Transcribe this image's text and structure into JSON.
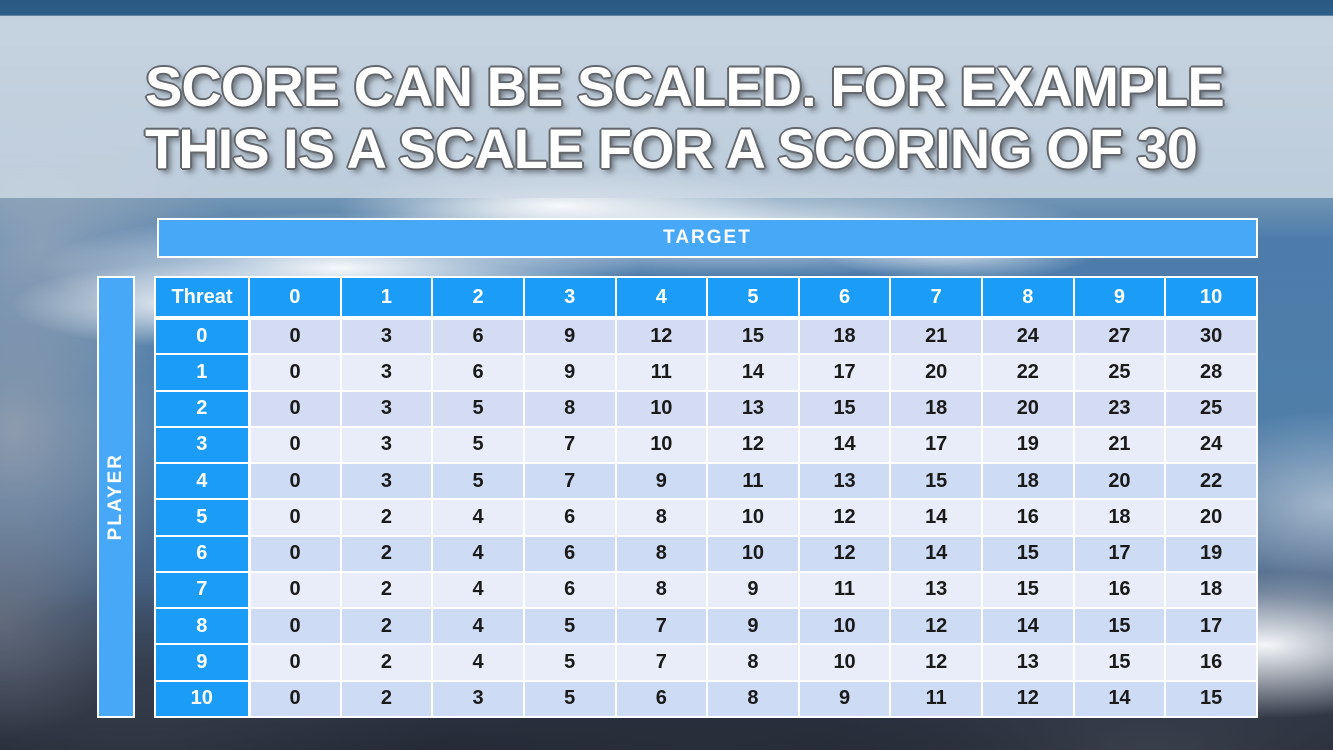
{
  "slide": {
    "title_line1": "SCORE CAN BE SCALED. FOR EXAMPLE",
    "title_line2": "THIS IS A SCALE FOR A SCORING OF 30"
  },
  "matrix": {
    "target_label": "TARGET",
    "player_label": "PLAYER",
    "corner_label": "Threat",
    "column_headers": [
      "0",
      "1",
      "2",
      "3",
      "4",
      "5",
      "6",
      "7",
      "8",
      "9",
      "10"
    ],
    "row_headers": [
      "0",
      "1",
      "2",
      "3",
      "4",
      "5",
      "6",
      "7",
      "8",
      "9",
      "10"
    ],
    "rows": [
      [
        0,
        3,
        6,
        9,
        12,
        15,
        18,
        21,
        24,
        27,
        30
      ],
      [
        0,
        3,
        6,
        9,
        11,
        14,
        17,
        20,
        22,
        25,
        28
      ],
      [
        0,
        3,
        5,
        8,
        10,
        13,
        15,
        18,
        20,
        23,
        25
      ],
      [
        0,
        3,
        5,
        7,
        10,
        12,
        14,
        17,
        19,
        21,
        24
      ],
      [
        0,
        3,
        5,
        7,
        9,
        11,
        13,
        15,
        18,
        20,
        22
      ],
      [
        0,
        2,
        4,
        6,
        8,
        10,
        12,
        14,
        16,
        18,
        20
      ],
      [
        0,
        2,
        4,
        6,
        8,
        10,
        12,
        14,
        15,
        17,
        19
      ],
      [
        0,
        2,
        4,
        6,
        8,
        9,
        11,
        13,
        15,
        16,
        18
      ],
      [
        0,
        2,
        4,
        5,
        7,
        9,
        10,
        12,
        14,
        15,
        17
      ],
      [
        0,
        2,
        4,
        5,
        7,
        8,
        10,
        12,
        13,
        15,
        16
      ],
      [
        0,
        2,
        3,
        5,
        6,
        8,
        9,
        11,
        12,
        14,
        15
      ]
    ]
  },
  "chart_data": {
    "type": "table",
    "title": "Score scale for a scoring of 30",
    "x_axis_label": "TARGET",
    "y_axis_label": "PLAYER",
    "corner_label": "Threat",
    "columns": [
      "0",
      "1",
      "2",
      "3",
      "4",
      "5",
      "6",
      "7",
      "8",
      "9",
      "10"
    ],
    "rows": [
      "0",
      "1",
      "2",
      "3",
      "4",
      "5",
      "6",
      "7",
      "8",
      "9",
      "10"
    ],
    "values": [
      [
        0,
        3,
        6,
        9,
        12,
        15,
        18,
        21,
        24,
        27,
        30
      ],
      [
        0,
        3,
        6,
        9,
        11,
        14,
        17,
        20,
        22,
        25,
        28
      ],
      [
        0,
        3,
        5,
        8,
        10,
        13,
        15,
        18,
        20,
        23,
        25
      ],
      [
        0,
        3,
        5,
        7,
        10,
        12,
        14,
        17,
        19,
        21,
        24
      ],
      [
        0,
        3,
        5,
        7,
        9,
        11,
        13,
        15,
        18,
        20,
        22
      ],
      [
        0,
        2,
        4,
        6,
        8,
        10,
        12,
        14,
        16,
        18,
        20
      ],
      [
        0,
        2,
        4,
        6,
        8,
        10,
        12,
        14,
        15,
        17,
        19
      ],
      [
        0,
        2,
        4,
        6,
        8,
        9,
        11,
        13,
        15,
        16,
        18
      ],
      [
        0,
        2,
        4,
        5,
        7,
        9,
        10,
        12,
        14,
        15,
        17
      ],
      [
        0,
        2,
        4,
        5,
        7,
        8,
        10,
        12,
        13,
        15,
        16
      ],
      [
        0,
        2,
        3,
        5,
        6,
        8,
        9,
        11,
        12,
        14,
        15
      ]
    ]
  },
  "colors": {
    "header_cell_blue": "#1b9df7",
    "axis_bar_blue": "#47a8f8",
    "row_stripe_dark": "#d3dcf2",
    "row_stripe_light": "#e9edf9",
    "cell_text": "#1a1a1a",
    "title_text": "#ffffff",
    "title_band": "#ced9e5"
  }
}
